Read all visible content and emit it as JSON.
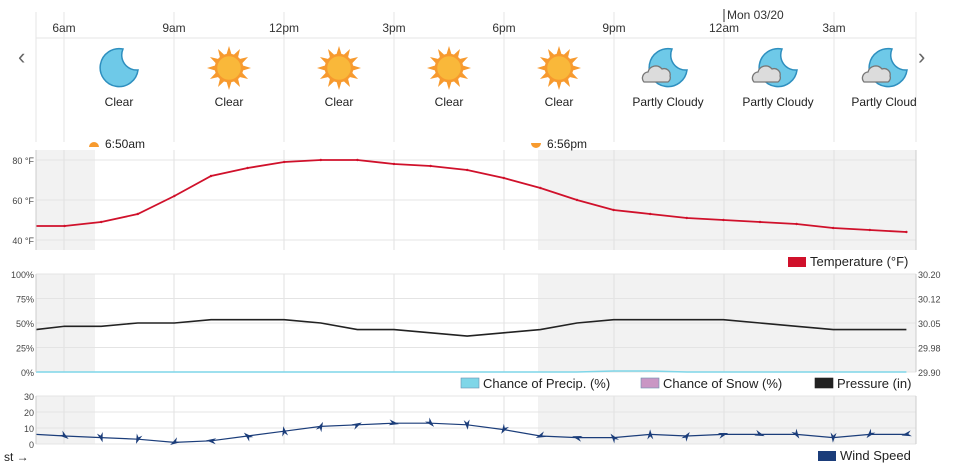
{
  "nav": {
    "prev": "‹",
    "next": "›"
  },
  "date_marker": "Mon 03/20",
  "hour_labels": [
    "6am",
    "9am",
    "12pm",
    "3pm",
    "6pm",
    "9pm",
    "12am",
    "3am"
  ],
  "forecast": [
    {
      "icon": "moon-icon",
      "label": "Clear"
    },
    {
      "icon": "sun-icon",
      "label": "Clear"
    },
    {
      "icon": "sun-icon",
      "label": "Clear"
    },
    {
      "icon": "sun-icon",
      "label": "Clear"
    },
    {
      "icon": "sun-icon",
      "label": "Clear"
    },
    {
      "icon": "moon-cloud-icon",
      "label": "Partly Cloudy"
    },
    {
      "icon": "moon-cloud-icon",
      "label": "Partly Cloudy"
    },
    {
      "icon": "moon-cloud-icon",
      "label": "Partly Cloud"
    }
  ],
  "sunrise": "6:50am",
  "sunset": "6:56pm",
  "colors": {
    "temperature": "#d0112b",
    "precip": "#7fd6e8",
    "snow": "#c996c4",
    "pressure": "#222222",
    "wind": "#1b3d7a",
    "night_shade": "#f2f2f2",
    "sun": "#f79a2e",
    "moon": "#6ec9e8"
  },
  "chart_data": [
    {
      "type": "line",
      "name": "temperature",
      "x": [
        "5am",
        "6am",
        "7am",
        "8am",
        "9am",
        "10am",
        "11am",
        "12pm",
        "1pm",
        "2pm",
        "3pm",
        "4pm",
        "5pm",
        "6pm",
        "7pm",
        "8pm",
        "9pm",
        "10pm",
        "11pm",
        "12am",
        "1am",
        "2am",
        "3am",
        "4am",
        "5am"
      ],
      "series": [
        {
          "name": "Temperature (°F)",
          "values": [
            47,
            47,
            49,
            53,
            62,
            72,
            76,
            79,
            80,
            80,
            78,
            77,
            75,
            71,
            66,
            60,
            55,
            53,
            51,
            50,
            49,
            48,
            46,
            45,
            44
          ]
        }
      ],
      "y_ticks": [
        "40 °F",
        "60 °F",
        "80 °F"
      ],
      "ylim": [
        35,
        85
      ],
      "grid": true,
      "legend": "bottom-right"
    },
    {
      "type": "line",
      "name": "precip-pressure",
      "x": [
        "5am",
        "6am",
        "7am",
        "8am",
        "9am",
        "10am",
        "11am",
        "12pm",
        "1pm",
        "2pm",
        "3pm",
        "4pm",
        "5pm",
        "6pm",
        "7pm",
        "8pm",
        "9pm",
        "10pm",
        "11pm",
        "12am",
        "1am",
        "2am",
        "3am",
        "4am",
        "5am"
      ],
      "series": [
        {
          "name": "Chance of Precip. (%)",
          "axis": "left",
          "values": [
            0,
            0,
            0,
            0,
            0,
            0,
            0,
            0,
            0,
            0,
            0,
            0,
            0,
            0,
            0,
            0,
            1,
            1,
            0,
            0,
            0,
            0,
            0,
            0,
            0
          ]
        },
        {
          "name": "Chance of Snow (%)",
          "axis": "left",
          "values": [
            0,
            0,
            0,
            0,
            0,
            0,
            0,
            0,
            0,
            0,
            0,
            0,
            0,
            0,
            0,
            0,
            0,
            0,
            0,
            0,
            0,
            0,
            0,
            0,
            0
          ]
        },
        {
          "name": "Pressure (in)",
          "axis": "right",
          "values": [
            30.03,
            30.04,
            30.04,
            30.05,
            30.05,
            30.06,
            30.06,
            30.06,
            30.05,
            30.03,
            30.03,
            30.02,
            30.01,
            30.02,
            30.03,
            30.05,
            30.06,
            30.06,
            30.06,
            30.06,
            30.05,
            30.04,
            30.03,
            30.03,
            30.03
          ]
        }
      ],
      "y_ticks_left": [
        "0%",
        "25%",
        "50%",
        "75%",
        "100%"
      ],
      "y_ticks_right": [
        "29.90",
        "29.98",
        "30.05",
        "30.12",
        "30.20"
      ],
      "ylim_left": [
        0,
        100
      ],
      "ylim_right": [
        29.9,
        30.2
      ],
      "grid": true,
      "legend": "bottom-right"
    },
    {
      "type": "line",
      "name": "wind",
      "x": [
        "5am",
        "6am",
        "7am",
        "8am",
        "9am",
        "10am",
        "11am",
        "12pm",
        "1pm",
        "2pm",
        "3pm",
        "4pm",
        "5pm",
        "6pm",
        "7pm",
        "8pm",
        "9pm",
        "10pm",
        "11pm",
        "12am",
        "1am",
        "2am",
        "3am",
        "4am",
        "5am"
      ],
      "series": [
        {
          "name": "Wind Speed",
          "values": [
            6,
            5,
            4,
            3,
            1,
            2,
            5,
            8,
            11,
            12,
            13,
            13,
            12,
            9,
            5,
            4,
            4,
            6,
            5,
            6,
            6,
            6,
            4,
            6,
            6
          ]
        }
      ],
      "y_ticks": [
        "0",
        "10",
        "20",
        "30"
      ],
      "ylim": [
        0,
        30
      ],
      "grid": true,
      "legend": "bottom-right"
    }
  ],
  "footer_note": "st →"
}
